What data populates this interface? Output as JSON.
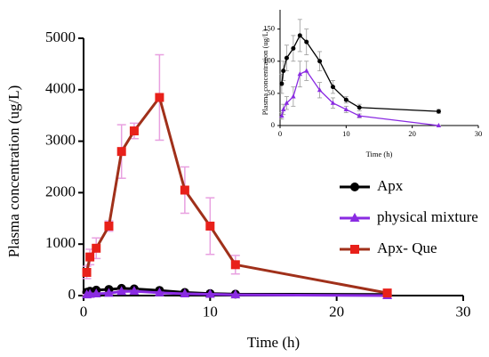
{
  "chart_data": [
    {
      "type": "line",
      "x_label": "Time (h)",
      "y_label": "Plasma concentration (ug/L)",
      "x": [
        0.25,
        0.5,
        1,
        2,
        3,
        4,
        6,
        8,
        10,
        12,
        24
      ],
      "xlim": [
        0,
        30
      ],
      "xticks": [
        0,
        10,
        20,
        30
      ],
      "ylim": [
        0,
        5000
      ],
      "yticks": [
        0,
        1000,
        2000,
        3000,
        4000,
        5000
      ],
      "legend": "right",
      "series": [
        {
          "name": "Apx",
          "color": "#000000",
          "marker": "circle",
          "error_color": "#e8a0e0",
          "values": [
            65,
            85,
            105,
            120,
            140,
            130,
            100,
            60,
            40,
            28,
            22
          ],
          "errors": [
            15,
            15,
            20,
            20,
            25,
            20,
            15,
            10,
            5,
            5,
            3
          ]
        },
        {
          "name": "physical mixture",
          "color": "#8a2be2",
          "marker": "triangle",
          "error_color": "#e8a0e0",
          "values": [
            15,
            25,
            35,
            45,
            80,
            85,
            55,
            35,
            25,
            15,
            0
          ],
          "errors": [
            5,
            8,
            10,
            15,
            20,
            15,
            12,
            8,
            5,
            3,
            0
          ]
        },
        {
          "name": "Apx- Que",
          "color": "#a0301a",
          "marker": "square",
          "marker_color": "#e8201a",
          "error_color": "#e8a0e0",
          "values": [
            450,
            750,
            920,
            1350,
            2800,
            3200,
            3850,
            2050,
            1350,
            600,
            50
          ],
          "errors": [
            120,
            150,
            200,
            100,
            520,
            150,
            830,
            450,
            550,
            180,
            40
          ]
        }
      ]
    },
    {
      "type": "line",
      "x_label": "Time (h)",
      "y_label": "Plasma concentration (ug/L)",
      "x": [
        0.25,
        0.5,
        1,
        2,
        3,
        4,
        6,
        8,
        10,
        12,
        24
      ],
      "xlim": [
        0,
        30
      ],
      "xticks": [
        0,
        10,
        20,
        30
      ],
      "ylim": [
        0,
        180
      ],
      "yticks": [
        0,
        50,
        100,
        150
      ],
      "series": [
        {
          "color": "#000000",
          "marker": "circle",
          "error_color": "#999999",
          "values": [
            65,
            85,
            105,
            120,
            140,
            130,
            100,
            60,
            40,
            28,
            22
          ],
          "errors": [
            15,
            15,
            20,
            20,
            25,
            20,
            15,
            10,
            5,
            5,
            3
          ]
        },
        {
          "color": "#8a2be2",
          "marker": "triangle",
          "error_color": "#999999",
          "values": [
            15,
            25,
            35,
            45,
            80,
            85,
            55,
            35,
            25,
            15,
            0
          ],
          "errors": [
            5,
            8,
            10,
            15,
            20,
            15,
            12,
            8,
            5,
            3,
            0
          ]
        }
      ]
    }
  ]
}
